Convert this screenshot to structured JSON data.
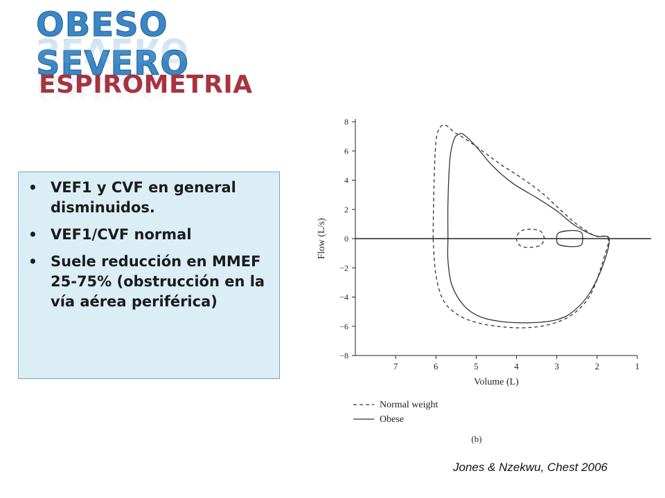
{
  "slide": {
    "title": "OBESO SEVERO",
    "subtitle": "ESPIROMETRIA",
    "bullets": [
      "VEF1 y CVF en general disminuidos.",
      "VEF1/CVF normal",
      "Suele reducción en MMEF 25-75% (obstrucción en la vía aérea periférica)"
    ],
    "citation": "Jones & Nzekwu, Chest 2006"
  },
  "chart_data": {
    "type": "line",
    "xlabel": "Volume (L)",
    "ylabel": "Flow (L/s)",
    "xlim": [
      8,
      1
    ],
    "ylim": [
      -8,
      8
    ],
    "x_ticks": [
      7,
      6,
      5,
      4,
      3,
      2,
      1
    ],
    "y_ticks": [
      8,
      6,
      4,
      2,
      0,
      -2,
      -4,
      -6,
      -8
    ],
    "y_tick_labels": [
      "8",
      "6",
      "4",
      "2",
      "0",
      "−2",
      "−4",
      "−6",
      "−8"
    ],
    "panel_label": "(b)",
    "legend_position": "bottom-left",
    "series": [
      {
        "name": "Normal weight",
        "style": "dashed",
        "loop": [
          [
            6.07,
            0
          ],
          [
            6.05,
            3.5
          ],
          [
            6.0,
            6.6
          ],
          [
            5.9,
            7.6
          ],
          [
            5.75,
            7.75
          ],
          [
            5.55,
            7.3
          ],
          [
            5.2,
            6.7
          ],
          [
            4.8,
            5.9
          ],
          [
            4.4,
            5.1
          ],
          [
            3.9,
            4.2
          ],
          [
            3.4,
            3.2
          ],
          [
            3.0,
            2.2
          ],
          [
            2.6,
            1.2
          ],
          [
            2.3,
            0.6
          ],
          [
            2.05,
            0.2
          ],
          [
            1.72,
            0
          ],
          [
            1.85,
            -1.5
          ],
          [
            2.1,
            -3.5
          ],
          [
            2.4,
            -4.7
          ],
          [
            2.8,
            -5.5
          ],
          [
            3.3,
            -5.95
          ],
          [
            3.8,
            -6.1
          ],
          [
            4.3,
            -6.05
          ],
          [
            4.9,
            -5.8
          ],
          [
            5.4,
            -5.3
          ],
          [
            5.8,
            -4.3
          ],
          [
            6.0,
            -2.5
          ],
          [
            6.07,
            0
          ]
        ],
        "tidal_loop": [
          [
            3.3,
            0
          ],
          [
            3.4,
            0.5
          ],
          [
            3.65,
            0.65
          ],
          [
            3.9,
            0.5
          ],
          [
            4.0,
            0
          ],
          [
            3.9,
            -0.5
          ],
          [
            3.65,
            -0.6
          ],
          [
            3.4,
            -0.45
          ],
          [
            3.3,
            0
          ]
        ]
      },
      {
        "name": "Obese",
        "style": "solid",
        "loop": [
          [
            5.7,
            0
          ],
          [
            5.7,
            2.5
          ],
          [
            5.65,
            5.5
          ],
          [
            5.55,
            6.8
          ],
          [
            5.42,
            7.15
          ],
          [
            5.3,
            7.1
          ],
          [
            5.0,
            6.3
          ],
          [
            4.6,
            5.0
          ],
          [
            4.1,
            3.8
          ],
          [
            3.5,
            2.8
          ],
          [
            3.0,
            1.9
          ],
          [
            2.6,
            1.0
          ],
          [
            2.3,
            0.5
          ],
          [
            2.0,
            0.15
          ],
          [
            1.7,
            0
          ],
          [
            1.85,
            -1.8
          ],
          [
            2.2,
            -3.8
          ],
          [
            2.6,
            -5.0
          ],
          [
            3.0,
            -5.55
          ],
          [
            3.6,
            -5.75
          ],
          [
            4.3,
            -5.7
          ],
          [
            4.9,
            -5.35
          ],
          [
            5.3,
            -4.6
          ],
          [
            5.6,
            -3.2
          ],
          [
            5.7,
            -1.5
          ],
          [
            5.7,
            0
          ]
        ],
        "tidal_loop": [
          [
            2.35,
            0
          ],
          [
            2.4,
            0.45
          ],
          [
            2.65,
            0.55
          ],
          [
            2.95,
            0.4
          ],
          [
            3.0,
            0
          ],
          [
            2.95,
            -0.4
          ],
          [
            2.65,
            -0.55
          ],
          [
            2.4,
            -0.45
          ],
          [
            2.35,
            0
          ]
        ]
      }
    ]
  }
}
